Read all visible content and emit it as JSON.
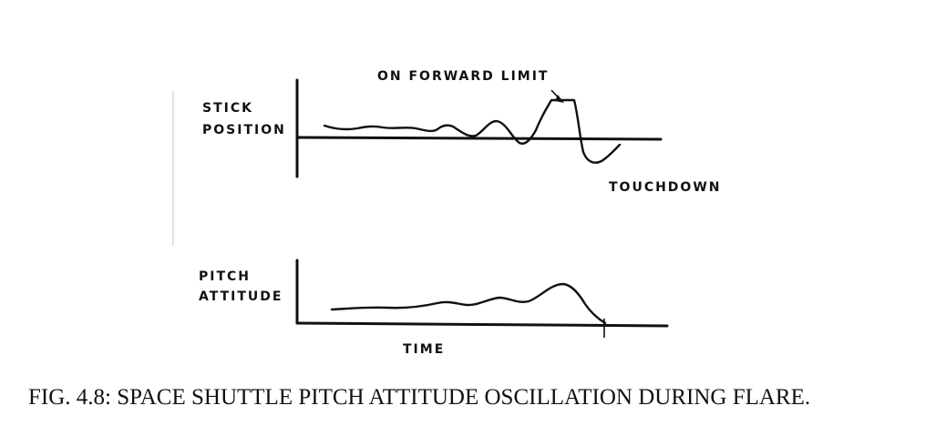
{
  "labels": {
    "stick_line1": "STICK",
    "stick_line2": "POSITION",
    "forward_limit": "ON FORWARD LIMIT",
    "touchdown": "TOUCHDOWN",
    "pitch_line1": "PITCH",
    "pitch_line2": "ATTITUDE",
    "time": "TIME"
  },
  "caption": "FIG. 4.8: SPACE SHUTTLE PITCH ATTITUDE OSCILLATION DURING FLARE."
}
